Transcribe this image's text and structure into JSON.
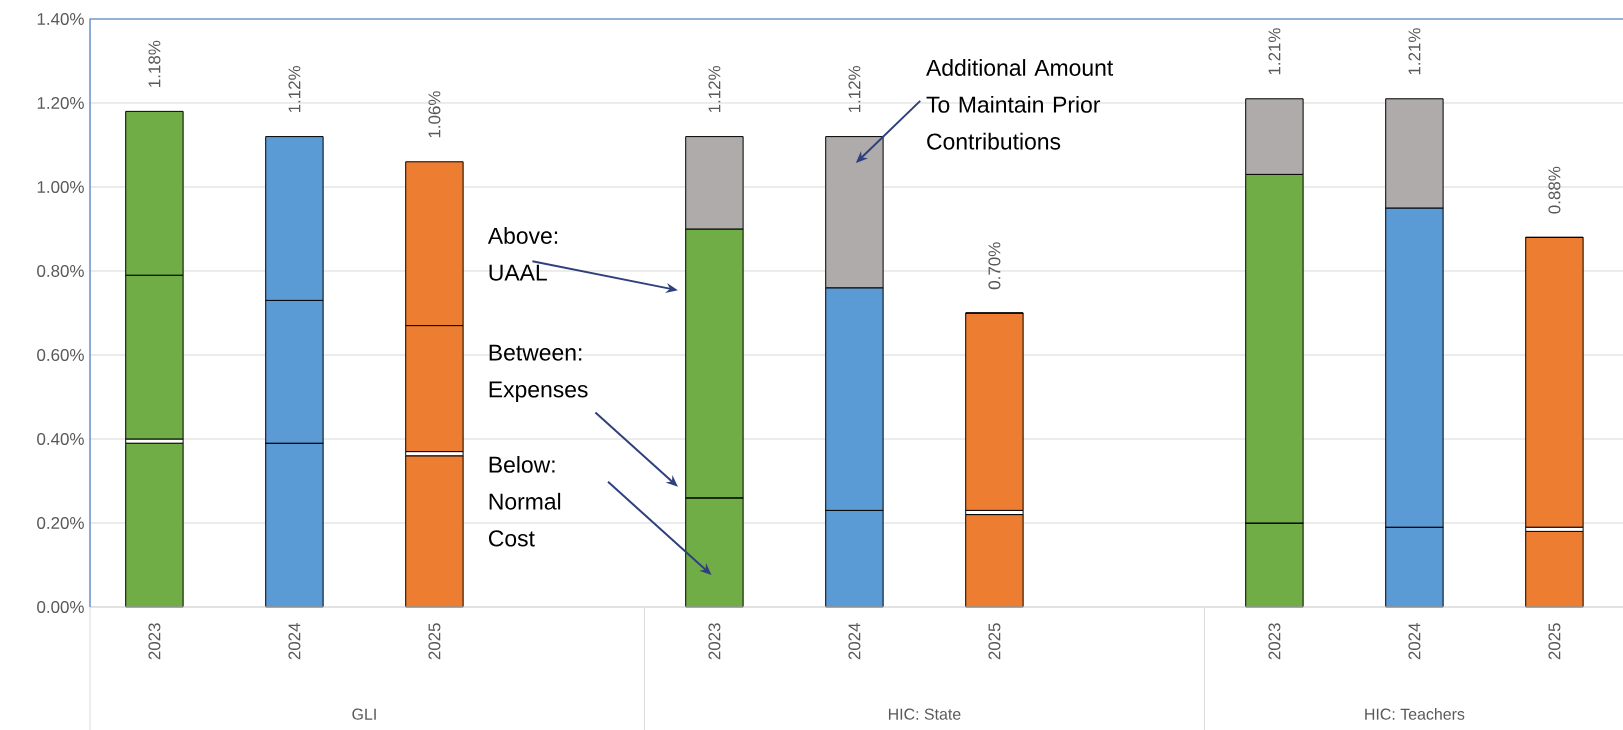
{
  "chart_data": {
    "type": "bar",
    "stacked": true,
    "categories": [
      "2023",
      "2024",
      "2025",
      null,
      "2023",
      "2024",
      "2025",
      null,
      "2023",
      "2024",
      "2025"
    ],
    "series": [
      {
        "colors": [
          "#70ad47",
          "#5b9bd5",
          "#ed7d31",
          null,
          "#70ad47",
          "#5b9bd5",
          "#ed7d31",
          null,
          "#70ad47",
          "#5b9bd5",
          "#ed7d31"
        ],
        "values": [
          0.39,
          0.39,
          0.36,
          null,
          0.26,
          0.23,
          0.22,
          null,
          0.2,
          0.19,
          0.18
        ]
      },
      {
        "colors": [
          "#ffffff",
          "#ffffff",
          "#ffffff",
          null,
          "#ffffff",
          "#ffffff",
          "#ffffff",
          null,
          "#ffffff",
          "#ffffff",
          "#ffffff"
        ],
        "values": [
          0.01,
          0,
          0.01,
          null,
          0,
          0,
          0.01,
          null,
          0,
          0,
          0.01
        ]
      },
      {
        "colors": [
          "#70ad47",
          "#5b9bd5",
          "#ed7d31",
          null,
          "#70ad47",
          "#5b9bd5",
          "#ed7d31",
          null,
          "#70ad47",
          "#5b9bd5",
          "#ed7d31"
        ],
        "values": [
          0.39,
          0.34,
          0.3,
          null,
          0.64,
          0.53,
          0.47,
          null,
          0.83,
          0.76,
          0.69
        ]
      },
      {
        "colors": [
          "#70ad47",
          "#5b9bd5",
          "#ed7d31",
          null,
          "#afabab",
          "#afabab",
          "#afabab",
          null,
          "#afabab",
          "#afabab",
          "#afabab"
        ],
        "values": [
          0.39,
          0.39,
          0.39,
          null,
          0.22,
          0.36,
          0,
          null,
          0.18,
          0.26,
          0
        ]
      }
    ],
    "totals": [
      "1.18%",
      "1.12%",
      "1.06%",
      null,
      "1.12%",
      "1.12%",
      "0.70%",
      null,
      "1.21%",
      "1.21%",
      "0.88%"
    ],
    "ylim": [
      0,
      1.4
    ],
    "yticks": [
      {
        "value": 0,
        "label": "0.00%"
      },
      {
        "value": 0.2,
        "label": "0.20%"
      },
      {
        "value": 0.4,
        "label": "0.40%"
      },
      {
        "value": 0.6,
        "label": "0.60%"
      },
      {
        "value": 0.8,
        "label": "0.80%"
      },
      {
        "value": 1.0,
        "label": "1.00%"
      },
      {
        "value": 1.2,
        "label": "1.20%"
      },
      {
        "value": 1.4,
        "label": "1.40%"
      }
    ],
    "grid": "y",
    "annotations": [
      "GLI",
      "HIC: State",
      "HIC: Teachers",
      "Additional Amount To Maintain Prior Contributions",
      "Above: UAAL",
      "Between: Expenses",
      "Below: Normal Cost"
    ]
  }
}
